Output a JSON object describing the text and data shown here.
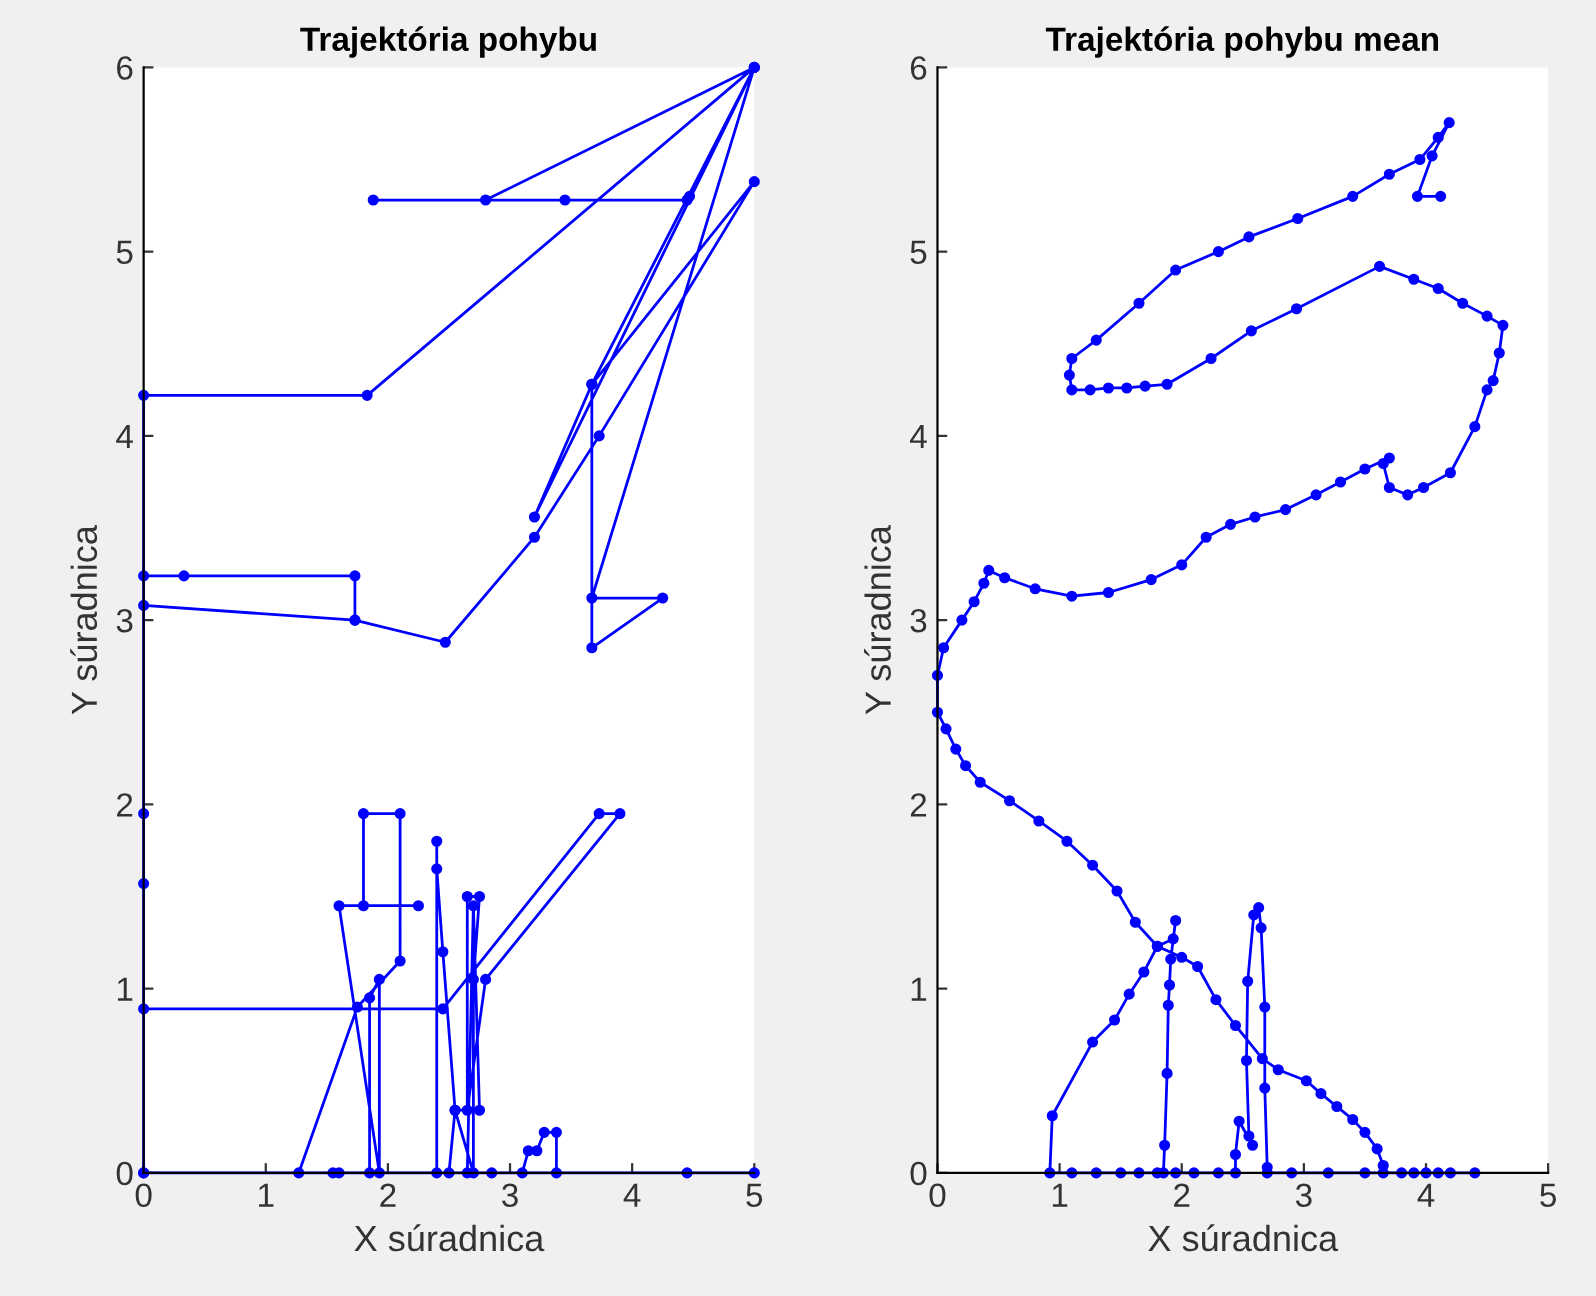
{
  "chart_data": [
    {
      "type": "line",
      "title": "Trajektória pohybu",
      "xlabel": "X súradnica",
      "ylabel": "Y súradnica",
      "xlim": [
        0,
        5
      ],
      "ylim": [
        0,
        6
      ],
      "xticks": [
        0,
        1,
        2,
        3,
        4,
        5
      ],
      "yticks": [
        0,
        1,
        2,
        3,
        4,
        5,
        6
      ],
      "marker": "circle",
      "line_style": "solid",
      "grid": false,
      "series": [
        {
          "color": "#0000ff",
          "x": [
            1.27,
            1.75,
            2.1,
            2.1,
            1.8,
            1.8,
            2.25,
            1.6,
            1.93,
            1.93,
            1.85,
            1.85,
            1.6,
            1.55,
            0,
            0,
            2.45,
            3.73,
            3.9,
            2.8,
            2.65,
            2.65,
            2.75,
            2.7,
            2.7,
            2.55,
            2.45,
            2.4,
            2.4,
            2.4,
            2.5,
            2.55,
            2.75,
            2.7,
            2.65,
            2.85,
            3.1,
            3.15,
            3.22,
            3.28,
            3.38,
            3.38,
            4.45,
            5,
            0,
            0,
            0,
            0,
            0.33,
            1.73,
            1.73,
            0,
            0,
            1.83,
            5,
            2.8,
            1.88,
            3.45,
            4.45,
            4.47,
            5,
            3.67,
            3.2,
            5,
            3.67,
            4.25,
            3.67,
            3.67,
            5,
            3.73,
            3.2,
            2.47,
            1.73
          ],
          "values": [
            0,
            0.9,
            1.15,
            1.95,
            1.95,
            1.45,
            1.45,
            1.45,
            0,
            1.05,
            0.95,
            0,
            0,
            0,
            0,
            0.89,
            0.89,
            1.95,
            1.95,
            1.05,
            0.34,
            1.5,
            1.5,
            1.05,
            0,
            0.34,
            1.2,
            1.65,
            1.8,
            0,
            0,
            0.34,
            0.34,
            1.45,
            0,
            0,
            0,
            0.12,
            0.12,
            0.22,
            0.22,
            0,
            0,
            0,
            0,
            1.57,
            1.95,
            3.24,
            3.24,
            3.24,
            3.0,
            3.08,
            4.22,
            4.22,
            6,
            5.28,
            5.28,
            5.28,
            5.28,
            5.3,
            6,
            4.28,
            3.56,
            6,
            3.12,
            3.12,
            2.85,
            4.28,
            5.38,
            4.0,
            3.45,
            2.88,
            3.0
          ]
        }
      ]
    },
    {
      "type": "line",
      "title": "Trajektória pohybu mean",
      "xlabel": "X súradnica",
      "ylabel": "Y súradnica",
      "xlim": [
        0,
        5
      ],
      "ylim": [
        0,
        6
      ],
      "xticks": [
        0,
        1,
        2,
        3,
        4,
        5
      ],
      "yticks": [
        0,
        1,
        2,
        3,
        4,
        5,
        6
      ],
      "marker": "circle",
      "line_style": "solid",
      "grid": false,
      "series": [
        {
          "color": "#0000ff",
          "x": [
            4.12,
            3.93,
            4.05,
            4.19,
            4.1,
            3.95,
            3.7,
            3.4,
            2.95,
            2.55,
            2.3,
            1.95,
            1.65,
            1.3,
            1.1,
            1.08,
            1.1,
            1.25,
            1.4,
            1.55,
            1.7,
            1.88,
            2.24,
            2.57,
            2.94,
            3.62,
            3.9,
            4.1,
            4.3,
            4.5,
            4.63,
            4.6,
            4.55,
            4.5,
            4.4,
            4.2,
            3.98,
            3.85,
            3.7,
            3.65,
            3.7,
            3.5,
            3.3,
            3.1,
            2.85,
            2.6,
            2.4,
            2.2,
            2.0,
            1.75,
            1.4,
            1.1,
            0.8,
            0.55,
            0.42,
            0.38,
            0.3,
            0.2,
            0.05,
            0,
            0,
            0.07,
            0.15,
            0.23,
            0.35,
            0.59,
            0.83,
            1.06,
            1.27,
            1.47,
            1.62,
            1.8,
            2.0,
            2.13,
            2.28,
            2.44,
            2.66,
            2.79,
            3.02,
            3.14,
            3.27,
            3.4,
            3.5,
            3.6,
            3.65,
            3.65,
            3.8,
            4.0,
            4.2,
            4.4,
            4.1,
            3.9,
            3.5,
            3.2,
            2.9,
            2.7,
            2.7,
            2.68,
            2.68,
            2.65,
            2.63,
            2.59,
            2.54,
            2.53,
            2.55,
            2.58,
            2.47,
            2.44,
            2.44,
            2.3,
            2.1,
            1.95,
            1.85,
            1.86,
            1.88,
            1.89,
            1.9,
            1.91,
            1.95,
            1.93,
            1.8,
            1.69,
            1.57,
            1.45,
            1.27,
            0.94,
            0.92,
            1.1,
            1.3,
            1.5,
            1.65,
            1.8
          ],
          "values": [
            5.3,
            5.3,
            5.52,
            5.7,
            5.62,
            5.5,
            5.42,
            5.3,
            5.18,
            5.08,
            5.0,
            4.9,
            4.72,
            4.52,
            4.42,
            4.33,
            4.25,
            4.25,
            4.26,
            4.26,
            4.27,
            4.28,
            4.42,
            4.57,
            4.69,
            4.92,
            4.85,
            4.8,
            4.72,
            4.65,
            4.6,
            4.45,
            4.3,
            4.25,
            4.05,
            3.8,
            3.72,
            3.68,
            3.72,
            3.85,
            3.88,
            3.82,
            3.75,
            3.68,
            3.6,
            3.56,
            3.52,
            3.45,
            3.3,
            3.22,
            3.15,
            3.13,
            3.17,
            3.23,
            3.27,
            3.2,
            3.1,
            3.0,
            2.85,
            2.7,
            2.5,
            2.41,
            2.3,
            2.21,
            2.12,
            2.02,
            1.91,
            1.8,
            1.67,
            1.53,
            1.36,
            1.23,
            1.17,
            1.12,
            0.94,
            0.8,
            0.62,
            0.56,
            0.5,
            0.43,
            0.36,
            0.29,
            0.22,
            0.13,
            0.04,
            0,
            0,
            0,
            0,
            0,
            0,
            0,
            0,
            0,
            0,
            0,
            0.03,
            0.46,
            0.9,
            1.33,
            1.44,
            1.4,
            1.04,
            0.61,
            0.2,
            0.15,
            0.28,
            0.1,
            0,
            0,
            0,
            0,
            0,
            0.15,
            0.54,
            0.91,
            1.02,
            1.16,
            1.37,
            1.27,
            1.23,
            1.09,
            0.97,
            0.83,
            0.71,
            0.31,
            0,
            0,
            0,
            0,
            0,
            0
          ]
        }
      ]
    }
  ]
}
